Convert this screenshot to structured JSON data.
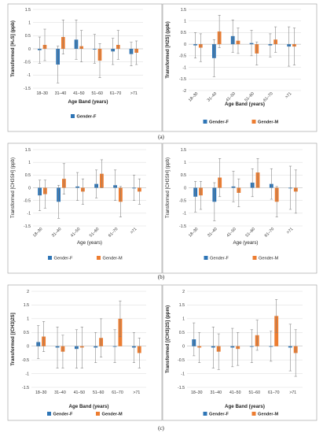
{
  "figure": {
    "captions": [
      "(a)",
      "(b)",
      "(c)"
    ]
  },
  "colors": {
    "female": "#2e75b6",
    "male": "#ed7d31",
    "grid": "#d9d9d9",
    "err": "#7f7f7f"
  },
  "chart_data": [
    {
      "type": "bar",
      "panel": "a-left",
      "categories": [
        "18–30",
        "31–40",
        "41–50",
        "51–60",
        "61–70",
        ">71"
      ],
      "ylim": [
        -1.5,
        1.5
      ],
      "yticks": [
        "1.5",
        "1",
        "0.5",
        "0",
        "-0.5",
        "-1",
        "-1.5"
      ],
      "ylabel": "Transformed [H₂S] (ppb)",
      "xlabel": "Age Band (years)",
      "grid": true,
      "legend_position": "bottom",
      "style": "bold",
      "series": [
        {
          "name": "Gender-F",
          "values": [
            -0.05,
            -0.6,
            0.35,
            0.0,
            -0.1,
            -0.2
          ],
          "err": [
            0.5,
            0.7,
            0.75,
            0.55,
            0.5,
            0.45
          ]
        },
        {
          "name": "",
          "values": [
            0.15,
            0.45,
            0.1,
            -0.45,
            0.15,
            -0.15
          ],
          "err": [
            0.6,
            0.65,
            0.6,
            0.65,
            0.55,
            0.45
          ]
        }
      ]
    },
    {
      "type": "bar",
      "panel": "a-right",
      "categories": [
        "18–30",
        "31–40",
        "41–50",
        "51–60",
        "61–70",
        ">71"
      ],
      "ylim": [
        -2,
        1.5
      ],
      "yticks": [
        "1.5",
        "1",
        "0.5",
        "0",
        "-0.5",
        "-1",
        "-1.5",
        "-2"
      ],
      "ylabel": "Transformed [H2S] (ppb)",
      "xlabel": "Age Band (years)",
      "grid": true,
      "legend_position": "bottom",
      "style": "bold",
      "series": [
        {
          "name": "Gender-F",
          "values": [
            -0.05,
            -0.6,
            0.35,
            0.05,
            -0.05,
            -0.1
          ],
          "err": [
            0.55,
            0.8,
            0.7,
            0.55,
            0.5,
            0.85
          ]
        },
        {
          "name": "Gender-M",
          "values": [
            -0.15,
            0.55,
            0.15,
            -0.4,
            0.2,
            -0.1
          ],
          "err": [
            0.6,
            0.7,
            0.55,
            0.5,
            0.55,
            0.8
          ]
        }
      ]
    },
    {
      "type": "bar",
      "panel": "b-left",
      "categories": [
        "18–30",
        "31–40",
        "41–50",
        "51–60",
        "61–70",
        ">71"
      ],
      "ylim": [
        -1.5,
        1.5
      ],
      "yticks": [
        "1.5",
        "1",
        "0.5",
        "0",
        "-0.5",
        "-1",
        "-1.5"
      ],
      "ylabel": "Transformed [CH3SH] (ppb)",
      "xlabel": "Age (years)",
      "grid": true,
      "legend_position": "bottom",
      "style": "light",
      "series": [
        {
          "name": "Gender-F",
          "values": [
            -0.3,
            -0.55,
            0.05,
            0.15,
            0.1,
            0.0
          ],
          "err": [
            0.6,
            0.65,
            0.55,
            0.55,
            0.6,
            0.5
          ]
        },
        {
          "name": "Gender-M",
          "values": [
            -0.25,
            0.35,
            -0.15,
            0.55,
            -0.55,
            -0.15
          ],
          "err": [
            0.55,
            0.6,
            0.5,
            0.55,
            0.6,
            0.5
          ]
        }
      ]
    },
    {
      "type": "bar",
      "panel": "b-right",
      "categories": [
        "18–30",
        "31–40",
        "41–50",
        "51–60",
        "61–70",
        ">71"
      ],
      "ylim": [
        -1.5,
        1.5
      ],
      "yticks": [
        "1.5",
        "1",
        "0.5",
        "0",
        "-0.5",
        "-1",
        "-1.5"
      ],
      "ylabel": "Transformed [CH3SH] (ppb)",
      "xlabel": "Age (years)",
      "grid": true,
      "legend_position": "bottom",
      "style": "light",
      "series": [
        {
          "name": "Gender-F",
          "values": [
            -0.35,
            -0.55,
            0.05,
            0.2,
            0.15,
            0.0
          ],
          "err": [
            0.6,
            0.75,
            0.6,
            0.55,
            0.6,
            0.85
          ]
        },
        {
          "name": "Gender-M",
          "values": [
            -0.3,
            0.4,
            -0.2,
            0.6,
            -0.55,
            -0.15
          ],
          "err": [
            0.55,
            0.75,
            0.55,
            0.55,
            0.6,
            0.85
          ]
        }
      ]
    },
    {
      "type": "bar",
      "panel": "c-left",
      "categories": [
        "18–30",
        "31–40",
        "41–50",
        "51–60",
        "61–70",
        ">71"
      ],
      "ylim": [
        -1.5,
        2
      ],
      "yticks": [
        "2",
        "1.5",
        "1",
        "0.5",
        "0",
        "-0.5",
        "-1",
        "-1.5"
      ],
      "ylabel": "Transformed [(CH3)2S]",
      "xlabel": "Age Band (years)",
      "grid": true,
      "legend_position": "bottom",
      "style": "bold",
      "series": [
        {
          "name": "Gender-F",
          "values": [
            0.15,
            -0.05,
            -0.1,
            -0.05,
            0.0,
            -0.05
          ],
          "err": [
            0.6,
            0.75,
            0.7,
            0.55,
            0.6,
            0.55
          ]
        },
        {
          "name": "Gender-M",
          "values": [
            0.35,
            -0.2,
            -0.05,
            0.3,
            1.0,
            -0.25
          ],
          "err": [
            0.55,
            0.6,
            0.75,
            0.7,
            0.65,
            0.55
          ]
        }
      ]
    },
    {
      "type": "bar",
      "panel": "c-right",
      "categories": [
        "18–30",
        "31–40",
        "41–50",
        "51–60",
        "61–70",
        ">71"
      ],
      "ylim": [
        -1.5,
        2
      ],
      "yticks": [
        "2",
        "1.5",
        "1",
        "0.5",
        "0",
        "-0.5",
        "-1",
        "-1.5"
      ],
      "ylabel": "Transformed [(CH3)2S] (ppm)",
      "xlabel": "Age Band (years)",
      "grid": true,
      "legend_position": "bottom",
      "style": "bold",
      "series": [
        {
          "name": "Gender-F",
          "values": [
            0.25,
            -0.05,
            -0.05,
            0.0,
            0.0,
            -0.05
          ],
          "err": [
            0.6,
            0.75,
            0.7,
            0.6,
            0.55,
            0.85
          ]
        },
        {
          "name": "Gender-M",
          "values": [
            -0.05,
            -0.2,
            -0.1,
            0.4,
            1.1,
            -0.25
          ],
          "err": [
            0.55,
            0.65,
            0.6,
            0.55,
            0.6,
            0.85
          ]
        }
      ]
    }
  ]
}
